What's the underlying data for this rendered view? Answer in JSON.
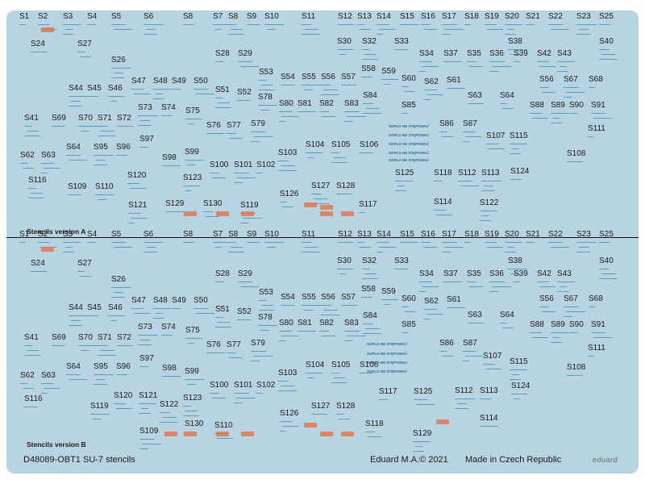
{
  "version_a": {
    "title": "Stencils version A",
    "labels": [
      [
        "S1",
        24,
        16
      ],
      [
        "S2",
        47,
        16
      ],
      [
        "S3",
        78,
        16
      ],
      [
        "S4",
        108,
        16
      ],
      [
        "S5",
        138,
        16
      ],
      [
        "S6",
        178,
        16
      ],
      [
        "S8",
        227,
        16
      ],
      [
        "S7",
        264,
        16
      ],
      [
        "S8",
        283,
        16
      ],
      [
        "S9",
        306,
        16
      ],
      [
        "S10",
        328,
        16
      ],
      [
        "S11",
        374,
        16
      ],
      [
        "S12",
        419,
        16
      ],
      [
        "S13",
        443,
        16
      ],
      [
        "S14",
        467,
        16
      ],
      [
        "S15",
        496,
        16
      ],
      [
        "S16",
        522,
        16
      ],
      [
        "S17",
        548,
        16
      ],
      [
        "S18",
        576,
        16
      ],
      [
        "S19",
        601,
        16
      ],
      [
        "S20",
        626,
        16
      ],
      [
        "S21",
        652,
        16
      ],
      [
        "S22",
        680,
        16
      ],
      [
        "S23",
        715,
        16
      ],
      [
        "S25",
        743,
        16
      ],
      [
        "S30",
        418,
        47
      ],
      [
        "S32",
        449,
        47
      ],
      [
        "S33",
        489,
        47
      ],
      [
        "S38",
        630,
        47
      ],
      [
        "S40",
        743,
        47
      ],
      [
        "S24",
        38,
        50
      ],
      [
        "S27",
        96,
        50
      ],
      [
        "S34",
        520,
        62
      ],
      [
        "S37",
        550,
        62
      ],
      [
        "S35",
        579,
        62
      ],
      [
        "S36",
        607,
        62
      ],
      [
        "S39",
        637,
        62
      ],
      [
        "S42",
        666,
        62
      ],
      [
        "S43",
        691,
        62
      ],
      [
        "S28",
        267,
        62
      ],
      [
        "S29",
        295,
        62
      ],
      [
        "S26",
        138,
        70
      ],
      [
        "S58",
        448,
        81
      ],
      [
        "S59",
        473,
        84
      ],
      [
        "S53",
        321,
        85
      ],
      [
        "S54",
        348,
        91
      ],
      [
        "S55",
        374,
        91
      ],
      [
        "S56",
        398,
        91
      ],
      [
        "S57",
        423,
        91
      ],
      [
        "S60",
        498,
        93
      ],
      [
        "S62",
        526,
        97
      ],
      [
        "S61",
        554,
        95
      ],
      [
        "S56",
        669,
        94
      ],
      [
        "S67",
        699,
        94
      ],
      [
        "S68",
        730,
        94
      ],
      [
        "S47",
        163,
        96
      ],
      [
        "S48",
        190,
        96
      ],
      [
        "S49",
        213,
        96
      ],
      [
        "S50",
        240,
        96
      ],
      [
        "S44",
        85,
        105
      ],
      [
        "S45",
        108,
        105
      ],
      [
        "S46",
        134,
        105
      ],
      [
        "S51",
        267,
        107
      ],
      [
        "S52",
        294,
        110
      ],
      [
        "S78",
        320,
        116
      ],
      [
        "S84",
        450,
        114
      ],
      [
        "S63",
        580,
        114
      ],
      [
        "S64",
        620,
        114
      ],
      [
        "S80",
        346,
        124
      ],
      [
        "S81",
        369,
        124
      ],
      [
        "S82",
        396,
        124
      ],
      [
        "S83",
        427,
        124
      ],
      [
        "S85",
        498,
        126
      ],
      [
        "S88",
        657,
        126
      ],
      [
        "S89",
        683,
        126
      ],
      [
        "S90",
        706,
        126
      ],
      [
        "S91",
        733,
        126
      ],
      [
        "S73",
        171,
        129
      ],
      [
        "S74",
        200,
        129
      ],
      [
        "S75",
        230,
        133
      ],
      [
        "S41",
        30,
        142
      ],
      [
        "S69",
        64,
        142
      ],
      [
        "S70",
        97,
        142
      ],
      [
        "S71",
        121,
        142
      ],
      [
        "S72",
        145,
        142
      ],
      [
        "S86",
        545,
        149
      ],
      [
        "S87",
        574,
        149
      ],
      [
        "S76",
        256,
        151
      ],
      [
        "S77",
        281,
        151
      ],
      [
        "S79",
        311,
        149
      ],
      [
        "S111",
        729,
        155
      ],
      [
        "S107",
        603,
        164
      ],
      [
        "S115",
        632,
        164
      ],
      [
        "S97",
        173,
        168
      ],
      [
        "S64",
        82,
        178
      ],
      [
        "S95",
        116,
        178
      ],
      [
        "S96",
        144,
        178
      ],
      [
        "S104",
        379,
        175
      ],
      [
        "S105",
        411,
        175
      ],
      [
        "S106",
        446,
        175
      ],
      [
        "S99",
        229,
        184
      ],
      [
        "S103",
        345,
        185
      ],
      [
        "S108",
        703,
        186
      ],
      [
        "S62",
        25,
        188
      ],
      [
        "S63",
        51,
        188
      ],
      [
        "S98",
        201,
        191
      ],
      [
        "S100",
        260,
        200
      ],
      [
        "S101",
        290,
        200
      ],
      [
        "S102",
        318,
        200
      ],
      [
        "S120",
        158,
        213
      ],
      [
        "S125",
        490,
        210
      ],
      [
        "S118",
        538,
        210
      ],
      [
        "S112",
        568,
        210
      ],
      [
        "S113",
        597,
        210
      ],
      [
        "S124",
        633,
        208
      ],
      [
        "S123",
        227,
        216
      ],
      [
        "S116",
        35,
        219
      ],
      [
        "S109",
        84,
        227
      ],
      [
        "S110",
        118,
        227
      ],
      [
        "S127",
        386,
        226
      ],
      [
        "S128",
        417,
        226
      ],
      [
        "S126",
        347,
        236
      ],
      [
        "S121",
        159,
        250
      ],
      [
        "S129",
        205,
        248
      ],
      [
        "S130",
        252,
        248
      ],
      [
        "S119",
        298,
        250
      ],
      [
        "S117",
        445,
        249
      ],
      [
        "S114",
        538,
        246
      ],
      [
        "S122",
        595,
        247
      ]
    ]
  },
  "version_b": {
    "title": "Stencils version B",
    "labels": [
      [
        "S1",
        24,
        286
      ],
      [
        "S2",
        47,
        286
      ],
      [
        "S3",
        78,
        286
      ],
      [
        "S4",
        108,
        286
      ],
      [
        "S5",
        138,
        286
      ],
      [
        "S6",
        178,
        286
      ],
      [
        "S8",
        227,
        286
      ],
      [
        "S7",
        264,
        286
      ],
      [
        "S8",
        283,
        286
      ],
      [
        "S9",
        306,
        286
      ],
      [
        "S10",
        328,
        286
      ],
      [
        "S11",
        374,
        286
      ],
      [
        "S12",
        419,
        286
      ],
      [
        "S13",
        443,
        286
      ],
      [
        "S14",
        467,
        286
      ],
      [
        "S15",
        496,
        286
      ],
      [
        "S16",
        522,
        286
      ],
      [
        "S17",
        548,
        286
      ],
      [
        "S18",
        576,
        286
      ],
      [
        "S19",
        601,
        286
      ],
      [
        "S20",
        626,
        286
      ],
      [
        "S21",
        652,
        286
      ],
      [
        "S22",
        680,
        286
      ],
      [
        "S23",
        715,
        286
      ],
      [
        "S25",
        743,
        286
      ],
      [
        "S30",
        418,
        319
      ],
      [
        "S32",
        449,
        319
      ],
      [
        "S33",
        489,
        319
      ],
      [
        "S38",
        630,
        319
      ],
      [
        "S40",
        743,
        319
      ],
      [
        "S24",
        38,
        322
      ],
      [
        "S27",
        96,
        322
      ],
      [
        "S34",
        520,
        335
      ],
      [
        "S37",
        550,
        335
      ],
      [
        "S35",
        579,
        335
      ],
      [
        "S36",
        607,
        335
      ],
      [
        "S39",
        637,
        335
      ],
      [
        "S42",
        666,
        335
      ],
      [
        "S43",
        691,
        335
      ],
      [
        "S28",
        267,
        335
      ],
      [
        "S29",
        295,
        335
      ],
      [
        "S26",
        138,
        342
      ],
      [
        "S58",
        448,
        354
      ],
      [
        "S59",
        473,
        357
      ],
      [
        "S53",
        321,
        358
      ],
      [
        "S54",
        348,
        364
      ],
      [
        "S55",
        374,
        364
      ],
      [
        "S56",
        398,
        364
      ],
      [
        "S57",
        423,
        364
      ],
      [
        "S60",
        498,
        366
      ],
      [
        "S62",
        526,
        369
      ],
      [
        "S61",
        554,
        367
      ],
      [
        "S56",
        669,
        366
      ],
      [
        "S67",
        699,
        366
      ],
      [
        "S68",
        730,
        366
      ],
      [
        "S47",
        163,
        368
      ],
      [
        "S48",
        190,
        368
      ],
      [
        "S49",
        213,
        368
      ],
      [
        "S50",
        240,
        368
      ],
      [
        "S44",
        85,
        377
      ],
      [
        "S45",
        108,
        377
      ],
      [
        "S46",
        134,
        377
      ],
      [
        "S51",
        267,
        379
      ],
      [
        "S52",
        294,
        382
      ],
      [
        "S78",
        320,
        389
      ],
      [
        "S84",
        450,
        387
      ],
      [
        "S63",
        580,
        386
      ],
      [
        "S64",
        620,
        386
      ],
      [
        "S80",
        346,
        396
      ],
      [
        "S81",
        369,
        396
      ],
      [
        "S82",
        396,
        396
      ],
      [
        "S83",
        427,
        396
      ],
      [
        "S85",
        498,
        398
      ],
      [
        "S88",
        657,
        398
      ],
      [
        "S89",
        683,
        398
      ],
      [
        "S90",
        706,
        398
      ],
      [
        "S91",
        733,
        398
      ],
      [
        "S73",
        171,
        401
      ],
      [
        "S74",
        200,
        401
      ],
      [
        "S75",
        230,
        405
      ],
      [
        "S41",
        30,
        414
      ],
      [
        "S69",
        64,
        414
      ],
      [
        "S70",
        97,
        414
      ],
      [
        "S71",
        121,
        414
      ],
      [
        "S72",
        145,
        414
      ],
      [
        "S86",
        545,
        421
      ],
      [
        "S87",
        574,
        421
      ],
      [
        "S76",
        256,
        423
      ],
      [
        "S77",
        281,
        423
      ],
      [
        "S79",
        311,
        421
      ],
      [
        "S111",
        729,
        427
      ],
      [
        "S107",
        599,
        437
      ],
      [
        "S115",
        632,
        444
      ],
      [
        "S97",
        173,
        440
      ],
      [
        "S64",
        82,
        450
      ],
      [
        "S95",
        116,
        450
      ],
      [
        "S96",
        144,
        450
      ],
      [
        "S104",
        379,
        448
      ],
      [
        "S105",
        411,
        448
      ],
      [
        "S106",
        446,
        448
      ],
      [
        "S99",
        229,
        456
      ],
      [
        "S103",
        345,
        458
      ],
      [
        "S108",
        703,
        451
      ],
      [
        "S62",
        25,
        461
      ],
      [
        "S63",
        51,
        461
      ],
      [
        "S98",
        201,
        452
      ],
      [
        "S100",
        260,
        473
      ],
      [
        "S101",
        290,
        473
      ],
      [
        "S102",
        318,
        473
      ],
      [
        "S120",
        141,
        486
      ],
      [
        "S121",
        172,
        486
      ],
      [
        "S117",
        470,
        481
      ],
      [
        "S125",
        513,
        481
      ],
      [
        "S112",
        564,
        480
      ],
      [
        "S113",
        595,
        480
      ],
      [
        "S124",
        634,
        474
      ],
      [
        "S123",
        227,
        489
      ],
      [
        "S116",
        30,
        490
      ],
      [
        "S119",
        112,
        499
      ],
      [
        "S122",
        198,
        497
      ],
      [
        "S127",
        386,
        499
      ],
      [
        "S128",
        417,
        499
      ],
      [
        "S126",
        347,
        508
      ],
      [
        "S114",
        595,
        514
      ],
      [
        "S118",
        453,
        521
      ],
      [
        "S109",
        173,
        530
      ],
      [
        "S130",
        229,
        521
      ],
      [
        "S110",
        266,
        523
      ],
      [
        "S129",
        512,
        533
      ]
    ]
  },
  "footer": {
    "part_number": "D48089-OBT1 SU-7 stencils",
    "copyright": "Eduard M.A.© 2021",
    "origin": "Made in Czech Republic",
    "logo": "eduard"
  },
  "blue_text": "SOPLO NE STĘPOWAĆ"
}
